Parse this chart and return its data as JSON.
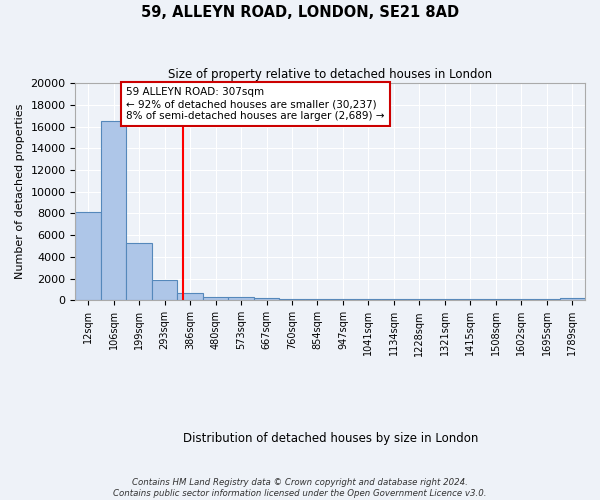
{
  "title": "59, ALLEYN ROAD, LONDON, SE21 8AD",
  "subtitle": "Size of property relative to detached houses in London",
  "xlabel": "Distribution of detached houses by size in London",
  "ylabel": "Number of detached properties",
  "bins": [
    "12sqm",
    "106sqm",
    "199sqm",
    "293sqm",
    "386sqm",
    "480sqm",
    "573sqm",
    "667sqm",
    "760sqm",
    "854sqm",
    "947sqm",
    "1041sqm",
    "1134sqm",
    "1228sqm",
    "1321sqm",
    "1415sqm",
    "1508sqm",
    "1602sqm",
    "1695sqm",
    "1789sqm"
  ],
  "bar_heights": [
    8100,
    16500,
    5300,
    1900,
    700,
    350,
    300,
    200,
    150,
    150,
    100,
    100,
    100,
    100,
    100,
    100,
    100,
    100,
    100,
    200
  ],
  "bar_color": "#aec6e8",
  "bar_edge_color": "#5588bb",
  "bar_width": 1.0,
  "red_line_x": 3.72,
  "annotation_text": "59 ALLEYN ROAD: 307sqm\n← 92% of detached houses are smaller (30,237)\n8% of semi-detached houses are larger (2,689) →",
  "annotation_box_color": "#ffffff",
  "annotation_box_edge_color": "#cc0000",
  "ylim": [
    0,
    20000
  ],
  "yticks": [
    0,
    2000,
    4000,
    6000,
    8000,
    10000,
    12000,
    14000,
    16000,
    18000,
    20000
  ],
  "background_color": "#eef2f8",
  "grid_color": "#ffffff",
  "footer_line1": "Contains HM Land Registry data © Crown copyright and database right 2024.",
  "footer_line2": "Contains public sector information licensed under the Open Government Licence v3.0."
}
